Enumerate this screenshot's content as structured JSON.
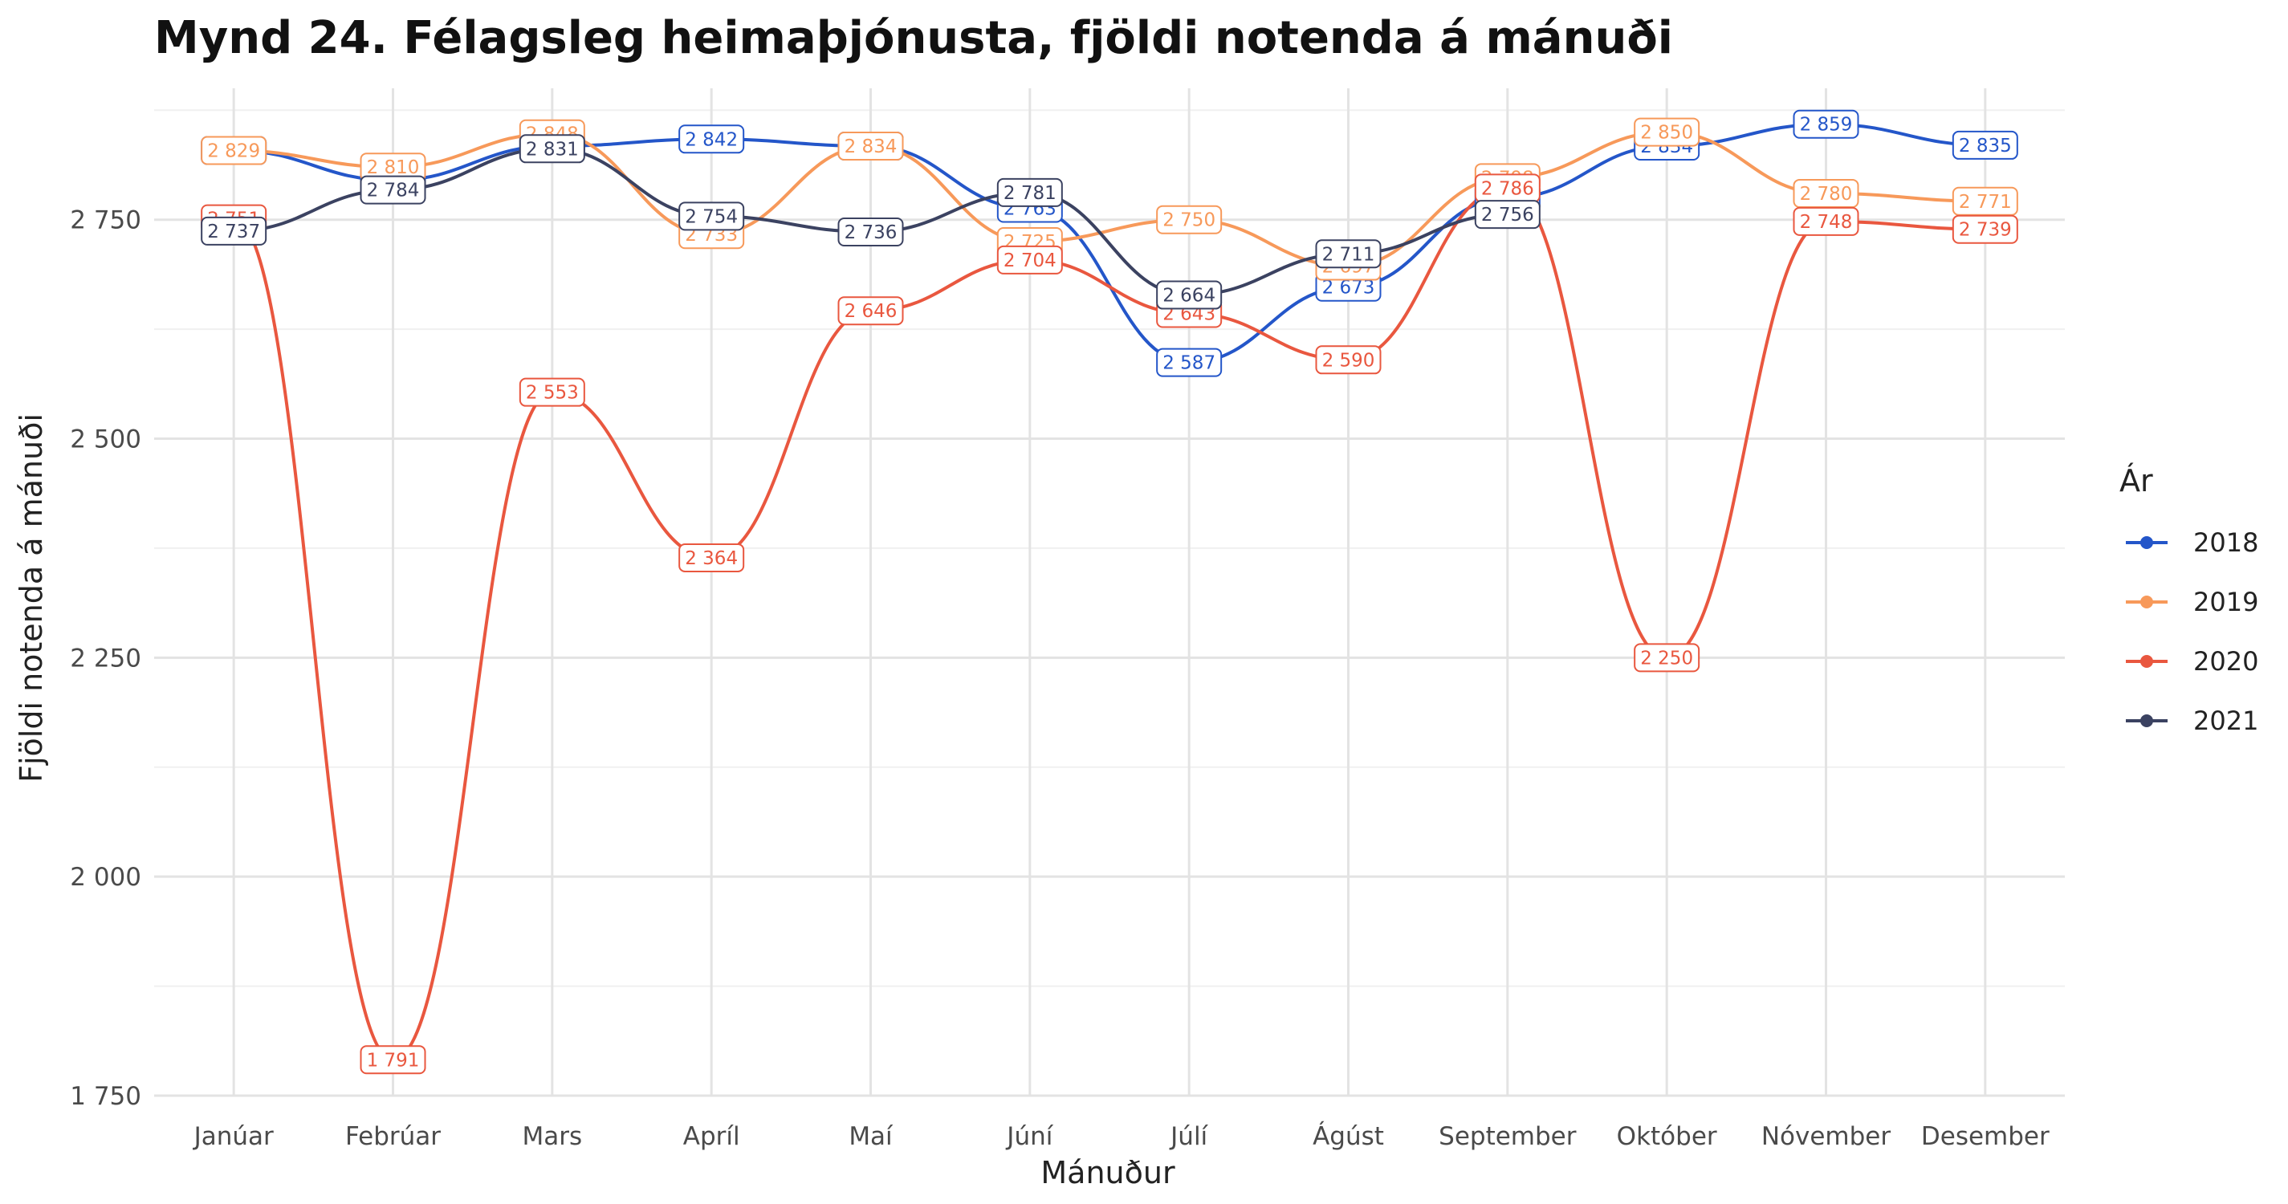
{
  "title": "Mynd 24. Félagsleg heimaþjónusta, fjöldi notenda á mánuði",
  "chart_data": {
    "type": "line",
    "title": "Mynd 24. Félagsleg heimaþjónusta, fjöldi notenda á mánuði",
    "xlabel": "Mánuður",
    "ylabel": "Fjöldi notenda á mánuði",
    "categories": [
      "Janúar",
      "Febrúar",
      "Mars",
      "Apríl",
      "Maí",
      "Júní",
      "Júlí",
      "Ágúst",
      "September",
      "Október",
      "Nóvember",
      "Desember"
    ],
    "ylim": [
      1750,
      2900
    ],
    "yticks": [
      1750,
      2000,
      2250,
      2500,
      2750
    ],
    "ytick_labels": [
      "1 750",
      "2 000",
      "2 250",
      "2 500",
      "2 750"
    ],
    "grid": true,
    "legend": {
      "title": "Ár",
      "position": "right"
    },
    "series": [
      {
        "name": "2018",
        "color": "#2456c9",
        "values": [
          2829,
          2795,
          2834,
          2842,
          2834,
          2763,
          2587,
          2673,
          2775,
          2834,
          2859,
          2835
        ]
      },
      {
        "name": "2019",
        "color": "#f7995a",
        "values": [
          2829,
          2810,
          2848,
          2733,
          2834,
          2725,
          2750,
          2697,
          2798,
          2850,
          2780,
          2771
        ]
      },
      {
        "name": "2020",
        "color": "#e9573f",
        "values": [
          2751,
          1791,
          2553,
          2364,
          2646,
          2704,
          2643,
          2590,
          2786,
          2250,
          2748,
          2739
        ]
      },
      {
        "name": "2021",
        "color": "#3b4261",
        "values": [
          2737,
          2784,
          2831,
          2754,
          2736,
          2781,
          2664,
          2711,
          2756,
          null,
          null,
          null
        ]
      }
    ]
  }
}
